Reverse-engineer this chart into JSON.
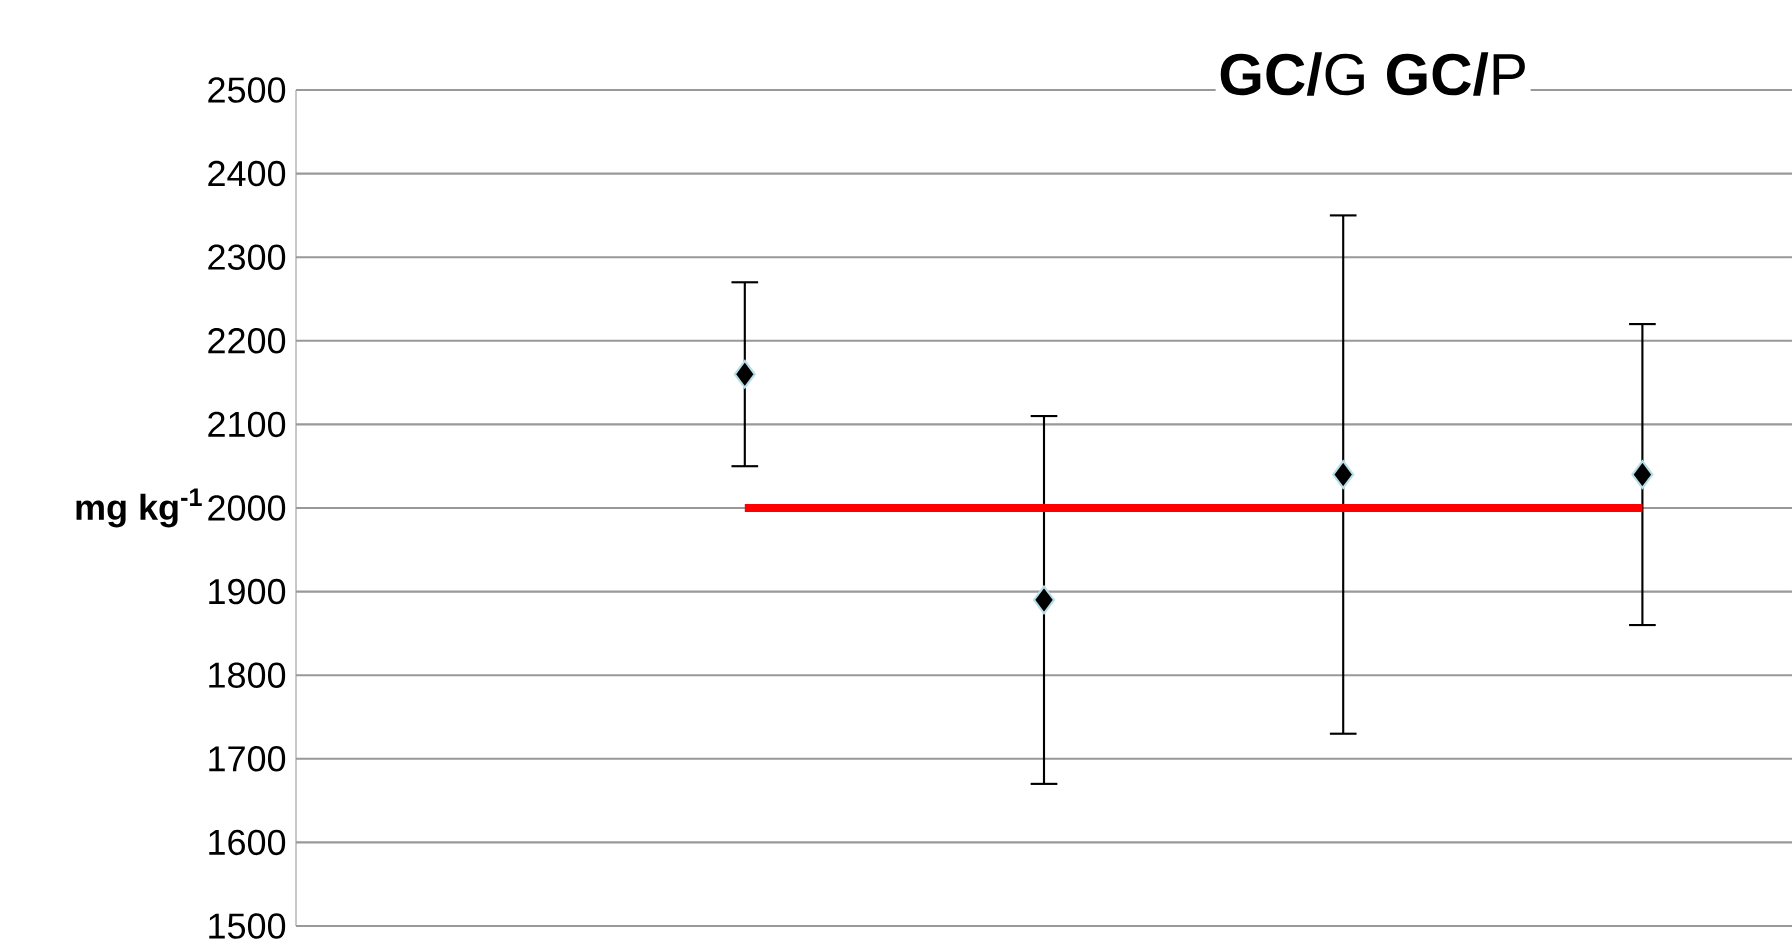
{
  "chart_data": {
    "type": "scatter",
    "title": "**GC/**G **GC/**P",
    "ylabel": "mg kg$^{-1}$",
    "categories": [
      null,
      null,
      null,
      null,
      null
    ],
    "series": [
      {
        "color": "#000000",
        "marker": "diamond",
        "values": [
          null,
          2160,
          1890,
          2040,
          2040
        ],
        "errors": [
          null,
          110,
          220,
          310,
          180
        ]
      },
      {
        "type": "line",
        "color": "#ff0000",
        "marker": "none",
        "line_style": "solid",
        "values": [
          null,
          2000,
          2000,
          2000,
          2000
        ]
      }
    ],
    "ylim": [
      1500,
      2500
    ],
    "yticks": [
      1500,
      1600,
      1700,
      1800,
      1900,
      2000,
      2100,
      2200,
      2300,
      2400,
      2500
    ],
    "grid": "y",
    "tick_labels": "y"
  }
}
